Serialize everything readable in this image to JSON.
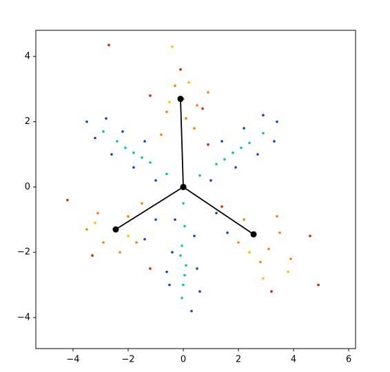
{
  "chart_data": {
    "type": "scatter",
    "xlim": [
      -5.35,
      6.25
    ],
    "ylim": [
      -4.95,
      4.8
    ],
    "xticks": [
      {
        "value": -4,
        "label": "−4"
      },
      {
        "value": -2,
        "label": "−2"
      },
      0,
      2,
      4,
      6
    ],
    "yticks": [
      {
        "value": -4,
        "label": "−4"
      },
      {
        "value": -2,
        "label": "−2"
      },
      0,
      2,
      4
    ],
    "series": [
      {
        "color": "#00d08a",
        "x": [
          0,
          0.05,
          -0.05,
          0.1,
          0,
          -0.05,
          0.05,
          -0.1,
          -0.6,
          -1.2,
          -1.8,
          -2.4,
          -2.9,
          -1.5,
          -2.1,
          0.6,
          1.2,
          1.8,
          2.4,
          2.9,
          1.5,
          2.1
        ],
        "y": [
          -0.5,
          -1.2,
          -1.8,
          -2.4,
          -3,
          -3.4,
          -2.7,
          -2.1,
          0.4,
          0.75,
          1.05,
          1.4,
          1.7,
          0.9,
          1.2,
          0.35,
          0.7,
          1.05,
          1.35,
          1.65,
          0.85,
          1.2
        ]
      },
      {
        "color": "#1040e0",
        "x": [
          0.4,
          -0.4,
          0.5,
          -0.5,
          0.3,
          -0.3,
          0.6,
          -0.6,
          -1.4,
          -2.2,
          -2.8,
          -3.5,
          -1.8,
          -2.6,
          -1.0,
          -3.2,
          1.4,
          2.2,
          2.9,
          3.4,
          1.9,
          2.7,
          1.0,
          3.3,
          -1.0,
          1.2,
          -1.4,
          1.6
        ],
        "y": [
          -1.5,
          -2,
          -2.5,
          -3,
          -3.8,
          -1.0,
          -3.2,
          -2.6,
          1.4,
          1.7,
          2.1,
          2.0,
          0.6,
          1.0,
          0.2,
          1.5,
          1.4,
          1.8,
          2.2,
          2.0,
          0.6,
          1.0,
          0.2,
          1.4,
          -1.0,
          -0.8,
          -1.6,
          -1.4
        ]
      },
      {
        "color": "#ff8000",
        "x": [
          0,
          -0.6,
          0.5,
          -0.3,
          0.4,
          -0.8,
          0.9,
          0.1,
          -2.5,
          -2.0,
          -2.9,
          -1.7,
          -3.1,
          -2.3,
          -1.5,
          -3.5,
          2.6,
          3.1,
          2.2,
          3.5,
          2.8,
          3.9,
          2.0,
          3.4
        ],
        "y": [
          2.7,
          2.3,
          2.5,
          3.1,
          1.8,
          1.6,
          2.9,
          2.1,
          -1.3,
          -0.9,
          -1.7,
          -1.7,
          -0.8,
          -2.0,
          -0.5,
          -1.3,
          -1.45,
          -1.9,
          -1.0,
          -1.4,
          -2.3,
          -2.2,
          -1.7,
          -0.9
        ]
      },
      {
        "color": "#e02000",
        "x": [
          -0.1,
          -1.2,
          0.9,
          -4.2,
          -3.3,
          -1.2,
          4.6,
          3.2,
          1.4,
          0.7,
          -2.7,
          4.9
        ],
        "y": [
          3.6,
          2.8,
          1.3,
          -0.4,
          -2.1,
          -2.5,
          -1.5,
          -3.2,
          -0.6,
          2.4,
          4.35,
          -3.0
        ]
      },
      {
        "color": "#ffc000",
        "x": [
          -0.4,
          0.2,
          -2.0,
          -3.2,
          2.9,
          3.8,
          2.4,
          -0.5
        ],
        "y": [
          4.3,
          3.2,
          -1.5,
          -1.1,
          -2.8,
          -2.6,
          -2.0,
          2.6
        ]
      },
      {
        "color": "#000000",
        "lines": true,
        "x": [
          -0.1,
          0,
          -2.45,
          null,
          0,
          2.55
        ],
        "y": [
          2.7,
          0,
          -1.3,
          null,
          0,
          -1.45
        ]
      }
    ]
  }
}
